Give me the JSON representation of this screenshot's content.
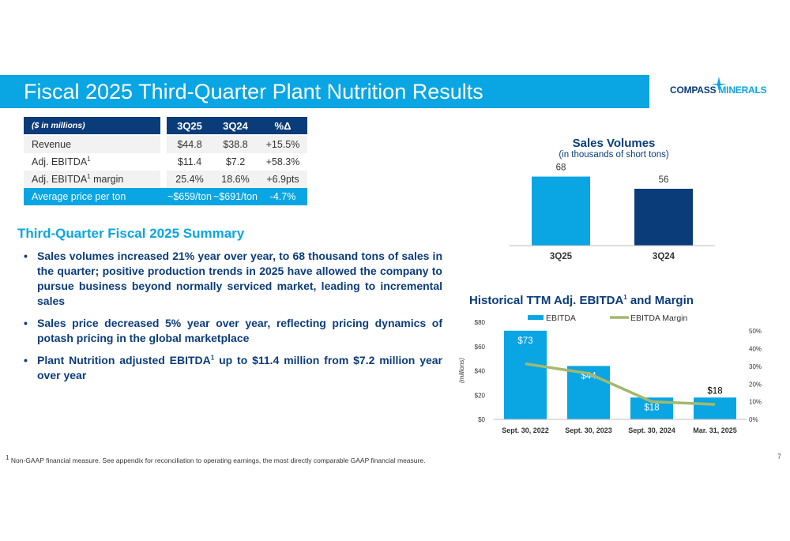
{
  "header": {
    "title": "Fiscal 2025 Third-Quarter Plant Nutrition Results",
    "logo_part1": "COMPASS",
    "logo_part2": "MINERALS"
  },
  "colors": {
    "primary_blue": "#0aa5e3",
    "navy": "#0b3c7a",
    "margin_line": "#a3b86c"
  },
  "table": {
    "header_label": "($ in millions)",
    "columns": [
      "3Q25",
      "3Q24",
      "%Δ"
    ],
    "rows": [
      {
        "label": "Revenue",
        "sup": "",
        "label_suffix": "",
        "values": [
          "$44.8",
          "$38.8",
          "+15.5%"
        ]
      },
      {
        "label": "Adj. EBITDA",
        "sup": "1",
        "label_suffix": "",
        "values": [
          "$11.4",
          "$7.2",
          "+58.3%"
        ]
      },
      {
        "label": "Adj. EBITDA",
        "sup": "1",
        "label_suffix": " margin",
        "values": [
          "25.4%",
          "18.6%",
          "+6.9pts"
        ]
      },
      {
        "label": "Average price per ton",
        "sup": "",
        "label_suffix": "",
        "values": [
          "~$659/ton",
          "~$691/ton",
          "-4.7%"
        ]
      }
    ]
  },
  "summary": {
    "heading": "Third-Quarter Fiscal 2025 Summary",
    "bullets": [
      {
        "text": "Sales volumes increased 21% year over year, to 68 thousand tons of sales in the quarter; positive production trends in 2025 have allowed the company to pursue business beyond normally serviced market, leading to incremental sales",
        "sup": "",
        "tail": ""
      },
      {
        "text": "Sales price decreased 5% year over year, reflecting pricing dynamics of potash pricing in the global marketplace",
        "sup": "",
        "tail": ""
      },
      {
        "text": "Plant Nutrition adjusted EBITDA",
        "sup": "1",
        "tail": " up to $11.4 million from $7.2 million year over year"
      }
    ]
  },
  "footnote": "Non-GAAP financial measure. See appendix for reconciliation to operating earnings, the most directly comparable GAAP financial measure.",
  "footnote_marker": "1",
  "page_number": "7",
  "chart_data": [
    {
      "type": "bar",
      "title": "Sales Volumes",
      "subtitle": "(in thousands of short tons)",
      "categories": [
        "3Q25",
        "3Q24"
      ],
      "values": [
        68,
        56
      ],
      "value_labels": [
        "68",
        "56"
      ],
      "bar_colors": [
        "#0aa5e3",
        "#0b3c7a"
      ],
      "ylim": [
        0,
        70
      ],
      "grid": false
    },
    {
      "type": "bar",
      "title_main": "Historical TTM Adj. EBITDA",
      "title_sup": "1",
      "title_tail": " and Margin",
      "ylabel": "(millions)",
      "categories": [
        "Sept. 30, 2022",
        "Sept. 30, 2023",
        "Sept. 30, 2024",
        "Mar. 31, 2025"
      ],
      "series": [
        {
          "name": "EBITDA",
          "kind": "bar",
          "axis": "left",
          "values": [
            73,
            44,
            18,
            18
          ],
          "labels": [
            "$73",
            "$44",
            "$18",
            "$18"
          ]
        },
        {
          "name": "EBITDA Margin",
          "kind": "line",
          "axis": "right",
          "values": [
            31.5,
            26,
            10,
            8.5
          ]
        }
      ],
      "y_left": {
        "min": 0,
        "max": 80,
        "ticks": [
          "$0",
          "$20",
          "$40",
          "$60",
          "$80"
        ],
        "tick_values": [
          0,
          20,
          40,
          60,
          80
        ]
      },
      "y_right": {
        "min": 0,
        "max": 55,
        "ticks": [
          "0%",
          "10%",
          "20%",
          "30%",
          "40%",
          "50%"
        ],
        "tick_values": [
          0,
          10,
          20,
          30,
          40,
          50
        ]
      },
      "legend_position": "top",
      "grid": false
    }
  ]
}
